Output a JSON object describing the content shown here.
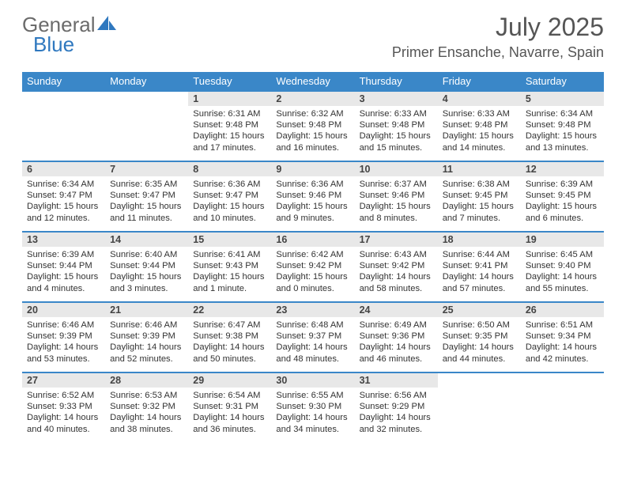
{
  "brand": {
    "part1": "General",
    "part2": "Blue",
    "accent_color": "#2f78bf",
    "text_color": "#6b6b6b"
  },
  "title": "July 2025",
  "location": "Primer Ensanche, Navarre, Spain",
  "colors": {
    "header_bg": "#3a87c8",
    "header_text": "#ffffff",
    "daynum_bg": "#e8e8e8",
    "row_divider": "#3a87c8",
    "body_text": "#333333"
  },
  "day_headers": [
    "Sunday",
    "Monday",
    "Tuesday",
    "Wednesday",
    "Thursday",
    "Friday",
    "Saturday"
  ],
  "weeks": [
    [
      null,
      null,
      {
        "n": "1",
        "sr": "6:31 AM",
        "ss": "9:48 PM",
        "dl": "15 hours and 17 minutes."
      },
      {
        "n": "2",
        "sr": "6:32 AM",
        "ss": "9:48 PM",
        "dl": "15 hours and 16 minutes."
      },
      {
        "n": "3",
        "sr": "6:33 AM",
        "ss": "9:48 PM",
        "dl": "15 hours and 15 minutes."
      },
      {
        "n": "4",
        "sr": "6:33 AM",
        "ss": "9:48 PM",
        "dl": "15 hours and 14 minutes."
      },
      {
        "n": "5",
        "sr": "6:34 AM",
        "ss": "9:48 PM",
        "dl": "15 hours and 13 minutes."
      }
    ],
    [
      {
        "n": "6",
        "sr": "6:34 AM",
        "ss": "9:47 PM",
        "dl": "15 hours and 12 minutes."
      },
      {
        "n": "7",
        "sr": "6:35 AM",
        "ss": "9:47 PM",
        "dl": "15 hours and 11 minutes."
      },
      {
        "n": "8",
        "sr": "6:36 AM",
        "ss": "9:47 PM",
        "dl": "15 hours and 10 minutes."
      },
      {
        "n": "9",
        "sr": "6:36 AM",
        "ss": "9:46 PM",
        "dl": "15 hours and 9 minutes."
      },
      {
        "n": "10",
        "sr": "6:37 AM",
        "ss": "9:46 PM",
        "dl": "15 hours and 8 minutes."
      },
      {
        "n": "11",
        "sr": "6:38 AM",
        "ss": "9:45 PM",
        "dl": "15 hours and 7 minutes."
      },
      {
        "n": "12",
        "sr": "6:39 AM",
        "ss": "9:45 PM",
        "dl": "15 hours and 6 minutes."
      }
    ],
    [
      {
        "n": "13",
        "sr": "6:39 AM",
        "ss": "9:44 PM",
        "dl": "15 hours and 4 minutes."
      },
      {
        "n": "14",
        "sr": "6:40 AM",
        "ss": "9:44 PM",
        "dl": "15 hours and 3 minutes."
      },
      {
        "n": "15",
        "sr": "6:41 AM",
        "ss": "9:43 PM",
        "dl": "15 hours and 1 minute."
      },
      {
        "n": "16",
        "sr": "6:42 AM",
        "ss": "9:42 PM",
        "dl": "15 hours and 0 minutes."
      },
      {
        "n": "17",
        "sr": "6:43 AM",
        "ss": "9:42 PM",
        "dl": "14 hours and 58 minutes."
      },
      {
        "n": "18",
        "sr": "6:44 AM",
        "ss": "9:41 PM",
        "dl": "14 hours and 57 minutes."
      },
      {
        "n": "19",
        "sr": "6:45 AM",
        "ss": "9:40 PM",
        "dl": "14 hours and 55 minutes."
      }
    ],
    [
      {
        "n": "20",
        "sr": "6:46 AM",
        "ss": "9:39 PM",
        "dl": "14 hours and 53 minutes."
      },
      {
        "n": "21",
        "sr": "6:46 AM",
        "ss": "9:39 PM",
        "dl": "14 hours and 52 minutes."
      },
      {
        "n": "22",
        "sr": "6:47 AM",
        "ss": "9:38 PM",
        "dl": "14 hours and 50 minutes."
      },
      {
        "n": "23",
        "sr": "6:48 AM",
        "ss": "9:37 PM",
        "dl": "14 hours and 48 minutes."
      },
      {
        "n": "24",
        "sr": "6:49 AM",
        "ss": "9:36 PM",
        "dl": "14 hours and 46 minutes."
      },
      {
        "n": "25",
        "sr": "6:50 AM",
        "ss": "9:35 PM",
        "dl": "14 hours and 44 minutes."
      },
      {
        "n": "26",
        "sr": "6:51 AM",
        "ss": "9:34 PM",
        "dl": "14 hours and 42 minutes."
      }
    ],
    [
      {
        "n": "27",
        "sr": "6:52 AM",
        "ss": "9:33 PM",
        "dl": "14 hours and 40 minutes."
      },
      {
        "n": "28",
        "sr": "6:53 AM",
        "ss": "9:32 PM",
        "dl": "14 hours and 38 minutes."
      },
      {
        "n": "29",
        "sr": "6:54 AM",
        "ss": "9:31 PM",
        "dl": "14 hours and 36 minutes."
      },
      {
        "n": "30",
        "sr": "6:55 AM",
        "ss": "9:30 PM",
        "dl": "14 hours and 34 minutes."
      },
      {
        "n": "31",
        "sr": "6:56 AM",
        "ss": "9:29 PM",
        "dl": "14 hours and 32 minutes."
      },
      null,
      null
    ]
  ],
  "labels": {
    "sunrise": "Sunrise: ",
    "sunset": "Sunset: ",
    "daylight": "Daylight: "
  }
}
